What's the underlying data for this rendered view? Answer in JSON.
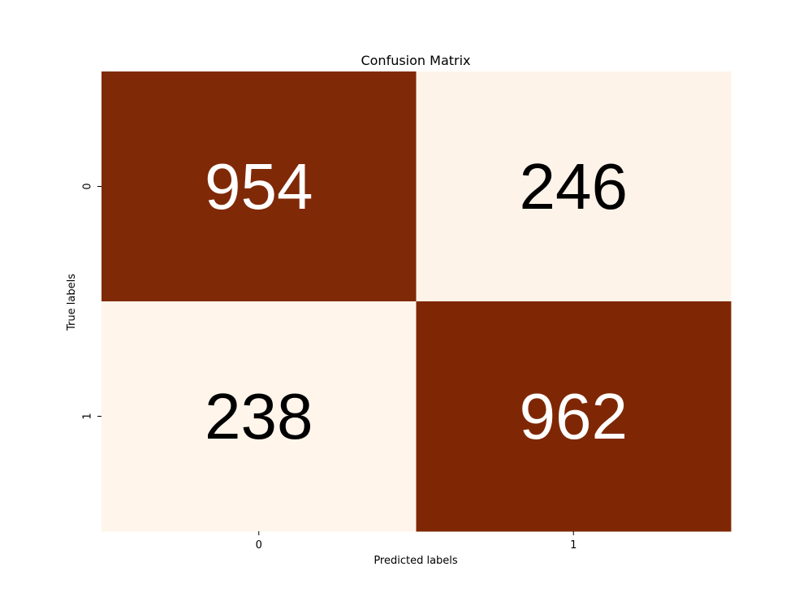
{
  "chart_data": {
    "type": "heatmap",
    "title": "Confusion Matrix",
    "xlabel": "Predicted labels",
    "ylabel": "True labels",
    "x_categories": [
      "0",
      "1"
    ],
    "y_categories": [
      "0",
      "1"
    ],
    "values": [
      [
        954,
        246
      ],
      [
        238,
        962
      ]
    ],
    "colormap": {
      "low": "#fff5eb",
      "high": "#7f2704"
    },
    "text_colors": {
      "on_dark": "#ffffff",
      "on_light": "#000000"
    },
    "colorbar": false,
    "grid": false
  }
}
